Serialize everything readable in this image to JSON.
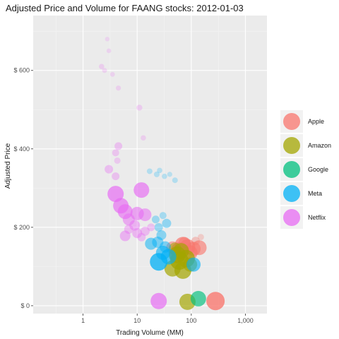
{
  "chart_data": {
    "type": "scatter",
    "title": "Adjusted Price and Volume for FAANG stocks: 2012-01-03",
    "xlabel": "Trading Volume (MM)",
    "ylabel": "Adjusted Price",
    "x_scale": "log10",
    "xlim": [
      0.12,
      2500
    ],
    "ylim": [
      -20,
      740
    ],
    "x_ticks": [
      1,
      10,
      100,
      1000
    ],
    "x_tick_labels": [
      "1",
      "10",
      "100",
      "1,000"
    ],
    "y_ticks": [
      0,
      200,
      400,
      600
    ],
    "y_tick_labels": [
      "$ 0",
      "$ 200",
      "$ 400",
      "$ 600"
    ],
    "grid": true,
    "legend_position": "right",
    "series": [
      {
        "name": "Apple",
        "color": "#F8766D",
        "points": [
          {
            "x": 280,
            "y": 12,
            "s": 1.0
          },
          {
            "x": 140,
            "y": 148,
            "s": 0.75
          },
          {
            "x": 60,
            "y": 140,
            "s": 0.9
          },
          {
            "x": 70,
            "y": 155,
            "s": 0.85
          },
          {
            "x": 85,
            "y": 150,
            "s": 0.8
          },
          {
            "x": 95,
            "y": 135,
            "s": 0.75
          },
          {
            "x": 110,
            "y": 145,
            "s": 0.7
          },
          {
            "x": 55,
            "y": 130,
            "s": 0.8
          },
          {
            "x": 45,
            "y": 148,
            "s": 0.6
          },
          {
            "x": 75,
            "y": 160,
            "s": 0.55
          },
          {
            "x": 120,
            "y": 165,
            "s": 0.3
          },
          {
            "x": 150,
            "y": 175,
            "s": 0.15
          }
        ]
      },
      {
        "name": "Amazon",
        "color": "#A3A500",
        "points": [
          {
            "x": 85,
            "y": 10,
            "s": 0.85
          },
          {
            "x": 70,
            "y": 90,
            "s": 0.9
          },
          {
            "x": 45,
            "y": 95,
            "s": 0.85
          },
          {
            "x": 60,
            "y": 115,
            "s": 1.0
          },
          {
            "x": 80,
            "y": 120,
            "s": 0.95
          },
          {
            "x": 55,
            "y": 130,
            "s": 0.9
          },
          {
            "x": 95,
            "y": 105,
            "s": 0.7
          },
          {
            "x": 50,
            "y": 145,
            "s": 0.6
          },
          {
            "x": 65,
            "y": 140,
            "s": 0.8
          }
        ]
      },
      {
        "name": "Google",
        "color": "#00BF7D",
        "points": [
          {
            "x": 135,
            "y": 18,
            "s": 0.8
          }
        ]
      },
      {
        "name": "Meta",
        "color": "#00B0F6",
        "points": [
          {
            "x": 25,
            "y": 112,
            "s": 0.95
          },
          {
            "x": 38,
            "y": 125,
            "s": 0.8
          },
          {
            "x": 30,
            "y": 135,
            "s": 0.7
          },
          {
            "x": 110,
            "y": 105,
            "s": 0.7
          },
          {
            "x": 18,
            "y": 158,
            "s": 0.55
          },
          {
            "x": 24,
            "y": 162,
            "s": 0.5
          },
          {
            "x": 33,
            "y": 150,
            "s": 0.5
          },
          {
            "x": 28,
            "y": 180,
            "s": 0.4
          },
          {
            "x": 35,
            "y": 210,
            "s": 0.35
          },
          {
            "x": 25,
            "y": 200,
            "s": 0.3
          },
          {
            "x": 22,
            "y": 220,
            "s": 0.25
          },
          {
            "x": 30,
            "y": 230,
            "s": 0.2
          },
          {
            "x": 17,
            "y": 343,
            "s": 0.1
          },
          {
            "x": 23,
            "y": 335,
            "s": 0.1
          },
          {
            "x": 26,
            "y": 345,
            "s": 0.08
          },
          {
            "x": 32,
            "y": 330,
            "s": 0.08
          },
          {
            "x": 40,
            "y": 335,
            "s": 0.06
          },
          {
            "x": 50,
            "y": 320,
            "s": 0.1
          }
        ]
      },
      {
        "name": "Netflix",
        "color": "#E76BF3",
        "points": [
          {
            "x": 25,
            "y": 12,
            "s": 0.85
          },
          {
            "x": 4,
            "y": 285,
            "s": 0.85
          },
          {
            "x": 12,
            "y": 295,
            "s": 0.8
          },
          {
            "x": 5,
            "y": 255,
            "s": 0.8
          },
          {
            "x": 6,
            "y": 240,
            "s": 0.75
          },
          {
            "x": 10,
            "y": 235,
            "s": 0.65
          },
          {
            "x": 14,
            "y": 232,
            "s": 0.6
          },
          {
            "x": 7,
            "y": 220,
            "s": 0.55
          },
          {
            "x": 9,
            "y": 205,
            "s": 0.45
          },
          {
            "x": 6,
            "y": 178,
            "s": 0.45
          },
          {
            "x": 10,
            "y": 185,
            "s": 0.4
          },
          {
            "x": 14,
            "y": 190,
            "s": 0.35
          },
          {
            "x": 7,
            "y": 195,
            "s": 0.35
          },
          {
            "x": 12,
            "y": 175,
            "s": 0.3
          },
          {
            "x": 18,
            "y": 200,
            "s": 0.25
          },
          {
            "x": 3,
            "y": 348,
            "s": 0.3
          },
          {
            "x": 4,
            "y": 330,
            "s": 0.25
          },
          {
            "x": 4.5,
            "y": 407,
            "s": 0.25
          },
          {
            "x": 4,
            "y": 390,
            "s": 0.2
          },
          {
            "x": 4.3,
            "y": 370,
            "s": 0.15
          },
          {
            "x": 11,
            "y": 505,
            "s": 0.12
          },
          {
            "x": 13,
            "y": 428,
            "s": 0.08
          },
          {
            "x": 4.5,
            "y": 555,
            "s": 0.06
          },
          {
            "x": 2.2,
            "y": 610,
            "s": 0.08
          },
          {
            "x": 2.5,
            "y": 600,
            "s": 0.05
          },
          {
            "x": 3.5,
            "y": 590,
            "s": 0.04
          },
          {
            "x": 3,
            "y": 650,
            "s": 0.03
          },
          {
            "x": 2.8,
            "y": 680,
            "s": 0.02
          }
        ]
      }
    ]
  }
}
